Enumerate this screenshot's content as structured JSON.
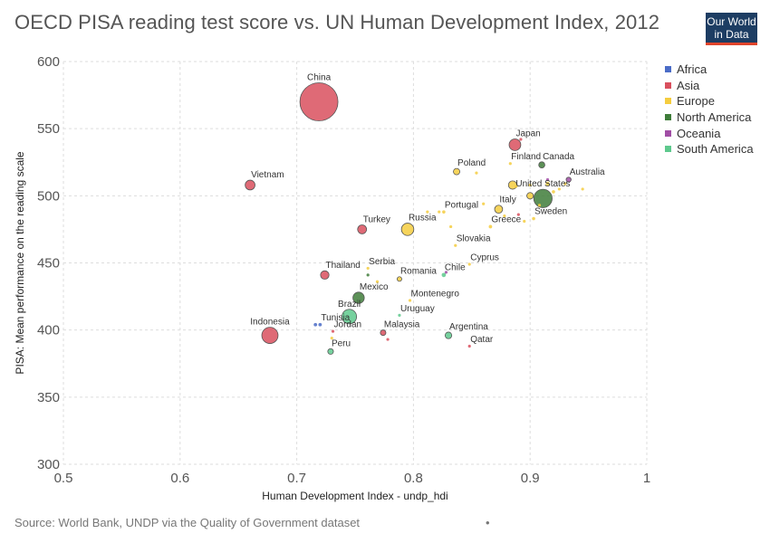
{
  "title": "OECD PISA reading test score vs. UN Human Development Index, 2012",
  "logo": {
    "line1": "Our World",
    "line2": "in Data"
  },
  "source": "Source: World Bank, UNDP via the Quality of Government dataset",
  "footer_mark": "•",
  "legend": [
    {
      "name": "Africa",
      "color": "#4b6cc7"
    },
    {
      "name": "Asia",
      "color": "#d9505e"
    },
    {
      "name": "Europe",
      "color": "#f5cd3f"
    },
    {
      "name": "North America",
      "color": "#3f7d3a"
    },
    {
      "name": "Oceania",
      "color": "#a14ea5"
    },
    {
      "name": "South America",
      "color": "#5ec98d"
    }
  ],
  "chart_data": {
    "type": "scatter",
    "title": "OECD PISA reading test score vs. UN Human Development Index, 2012",
    "xlabel": "Human Development Index - undp_hdi",
    "ylabel": "PISA: Mean performance on the reading scale",
    "xlim": [
      0.5,
      1
    ],
    "ylim": [
      300,
      600
    ],
    "xticks": [
      "0.5",
      "0.6",
      "0.7",
      "0.8",
      "0.9",
      "1"
    ],
    "yticks": [
      "300",
      "350",
      "400",
      "450",
      "500",
      "550",
      "600"
    ],
    "grid": true,
    "legend_position": "right",
    "points": [
      {
        "label": "China",
        "region": "Asia",
        "x": 0.719,
        "y": 570,
        "size": 1350
      },
      {
        "label": "Vietnam",
        "region": "Asia",
        "x": 0.66,
        "y": 508,
        "size": 90
      },
      {
        "label": "Japan",
        "region": "Asia",
        "x": 0.887,
        "y": 538,
        "size": 127
      },
      {
        "label": "Turkey",
        "region": "Asia",
        "x": 0.756,
        "y": 475,
        "size": 75
      },
      {
        "label": "Thailand",
        "region": "Asia",
        "x": 0.724,
        "y": 441,
        "size": 67
      },
      {
        "label": "Indonesia",
        "region": "Asia",
        "x": 0.677,
        "y": 396,
        "size": 246
      },
      {
        "label": "Jordan",
        "region": "Asia",
        "x": 0.731,
        "y": 399,
        "size": 6
      },
      {
        "label": "Malaysia",
        "region": "Asia",
        "x": 0.774,
        "y": 398,
        "size": 29
      },
      {
        "label": "Qatar",
        "region": "Asia",
        "x": 0.848,
        "y": 388,
        "size": 2
      },
      {
        "label": "Poland",
        "region": "Europe",
        "x": 0.837,
        "y": 518,
        "size": 38
      },
      {
        "label": "Finland",
        "region": "Europe",
        "x": 0.883,
        "y": 524,
        "size": 5
      },
      {
        "label": "Portugal",
        "region": "Europe",
        "x": 0.826,
        "y": 488,
        "size": 10
      },
      {
        "label": "Russia",
        "region": "Europe",
        "x": 0.795,
        "y": 475,
        "size": 143
      },
      {
        "label": "Italy",
        "region": "Europe",
        "x": 0.873,
        "y": 490,
        "size": 60
      },
      {
        "label": "Greece",
        "region": "Europe",
        "x": 0.866,
        "y": 477,
        "size": 11
      },
      {
        "label": "Slovakia",
        "region": "Europe",
        "x": 0.836,
        "y": 463,
        "size": 5
      },
      {
        "label": "Sweden",
        "region": "Europe",
        "x": 0.903,
        "y": 483,
        "size": 10
      },
      {
        "label": "Serbia",
        "region": "Europe",
        "x": 0.761,
        "y": 446,
        "size": 7
      },
      {
        "label": "Romania",
        "region": "Europe",
        "x": 0.788,
        "y": 438,
        "size": 20
      },
      {
        "label": "Montenegro",
        "region": "Europe",
        "x": 0.797,
        "y": 422,
        "size": 1
      },
      {
        "label": "Cyprus",
        "region": "Europe",
        "x": 0.848,
        "y": 449,
        "size": 1
      },
      {
        "label": "Canada",
        "region": "North America",
        "x": 0.91,
        "y": 523,
        "size": 35
      },
      {
        "label": "United States",
        "region": "North America",
        "x": 0.911,
        "y": 498,
        "size": 315
      },
      {
        "label": "Mexico",
        "region": "North America",
        "x": 0.753,
        "y": 424,
        "size": 120
      },
      {
        "label": "Australia",
        "region": "Oceania",
        "x": 0.933,
        "y": 512,
        "size": 23
      },
      {
        "label": "Brazil",
        "region": "South America",
        "x": 0.745,
        "y": 410,
        "size": 200
      },
      {
        "label": "Uruguay",
        "region": "South America",
        "x": 0.788,
        "y": 411,
        "size": 3
      },
      {
        "label": "Argentina",
        "region": "South America",
        "x": 0.83,
        "y": 396,
        "size": 41
      },
      {
        "label": "Chile",
        "region": "South America",
        "x": 0.826,
        "y": 441,
        "size": 17
      },
      {
        "label": "Peru",
        "region": "South America",
        "x": 0.729,
        "y": 384,
        "size": 30
      },
      {
        "label": "Tunisia",
        "region": "Africa",
        "x": 0.72,
        "y": 404,
        "size": 11
      },
      {
        "label": "",
        "region": "Africa",
        "x": 0.716,
        "y": 404,
        "size": 11
      },
      {
        "label": "",
        "region": "Europe",
        "x": 0.86,
        "y": 494,
        "size": 3
      },
      {
        "label": "",
        "region": "Europe",
        "x": 0.885,
        "y": 508,
        "size": 65
      },
      {
        "label": "",
        "region": "Europe",
        "x": 0.878,
        "y": 485,
        "size": 3
      },
      {
        "label": "",
        "region": "Europe",
        "x": 0.9,
        "y": 500,
        "size": 40
      },
      {
        "label": "",
        "region": "Europe",
        "x": 0.915,
        "y": 509,
        "size": 15
      },
      {
        "label": "",
        "region": "Europe",
        "x": 0.92,
        "y": 503,
        "size": 10
      },
      {
        "label": "",
        "region": "Europe",
        "x": 0.925,
        "y": 505,
        "size": 5
      },
      {
        "label": "",
        "region": "Europe",
        "x": 0.895,
        "y": 481,
        "size": 2
      },
      {
        "label": "",
        "region": "Europe",
        "x": 0.9,
        "y": 508,
        "size": 2
      },
      {
        "label": "",
        "region": "Europe",
        "x": 0.888,
        "y": 507,
        "size": 8
      },
      {
        "label": "",
        "region": "Europe",
        "x": 0.908,
        "y": 493,
        "size": 4
      },
      {
        "label": "",
        "region": "Europe",
        "x": 0.93,
        "y": 509,
        "size": 2
      },
      {
        "label": "",
        "region": "Europe",
        "x": 0.945,
        "y": 505,
        "size": 2
      },
      {
        "label": "",
        "region": "Europe",
        "x": 0.854,
        "y": 517,
        "size": 2
      },
      {
        "label": "",
        "region": "Europe",
        "x": 0.812,
        "y": 488,
        "size": 1
      },
      {
        "label": "",
        "region": "Europe",
        "x": 0.822,
        "y": 488,
        "size": 2
      },
      {
        "label": "",
        "region": "Europe",
        "x": 0.832,
        "y": 477,
        "size": 1
      },
      {
        "label": "",
        "region": "Europe",
        "x": 0.769,
        "y": 436,
        "size": 2
      },
      {
        "label": "",
        "region": "Europe",
        "x": 0.73,
        "y": 394,
        "size": 2
      },
      {
        "label": "",
        "region": "Asia",
        "x": 0.89,
        "y": 486,
        "size": 5
      },
      {
        "label": "",
        "region": "Asia",
        "x": 0.892,
        "y": 542,
        "size": 2
      },
      {
        "label": "",
        "region": "Asia",
        "x": 0.778,
        "y": 393,
        "size": 5
      },
      {
        "label": "",
        "region": "Oceania",
        "x": 0.915,
        "y": 512,
        "size": 3
      },
      {
        "label": "",
        "region": "Oceania",
        "x": 0.828,
        "y": 443,
        "size": 3
      },
      {
        "label": "",
        "region": "North America",
        "x": 0.761,
        "y": 441,
        "size": 4
      }
    ]
  }
}
